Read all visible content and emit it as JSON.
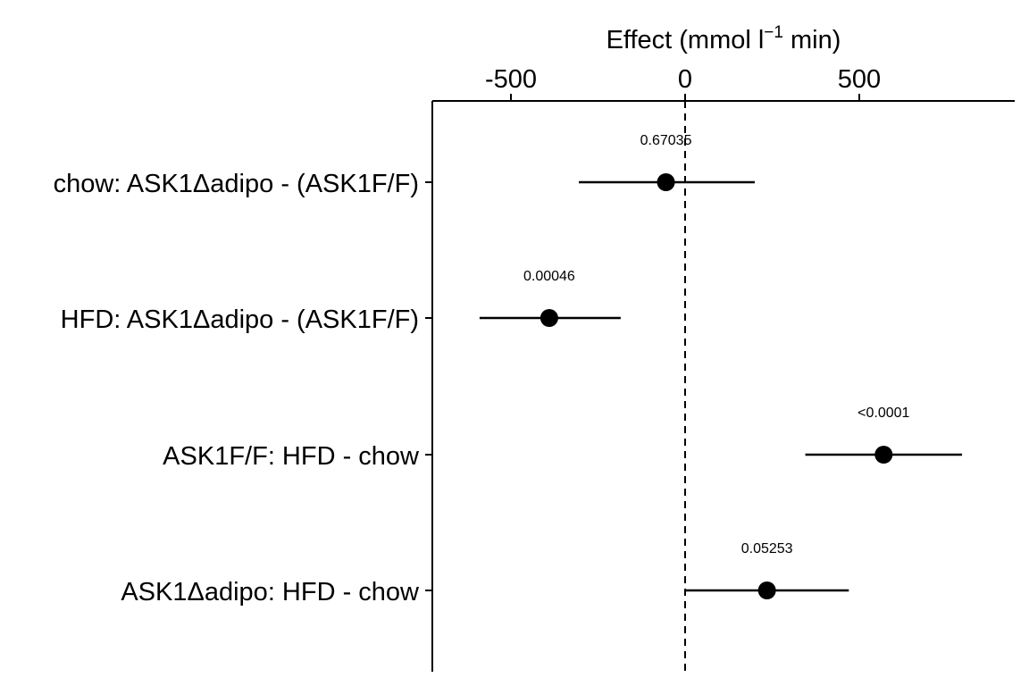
{
  "chart_data": {
    "type": "scatter",
    "subtype": "forest-plot",
    "xlabel": {
      "prefix": "Effect (mmol l",
      "superscript": "−1",
      "suffix": " min)"
    },
    "x_axis_position": "top",
    "xlim": [
      -750,
      950
    ],
    "xticks": [
      -500,
      0,
      500
    ],
    "xtick_labels": [
      "-500",
      "0",
      "500"
    ],
    "reference_line": {
      "x": 0,
      "style": "dashed"
    },
    "grid": false,
    "legend": "none",
    "rows": [
      {
        "label": "chow: ASK1Δadipo - (ASK1F/F)",
        "estimate": -55,
        "ci_low": -305,
        "ci_high": 200,
        "p_value": "0.67035"
      },
      {
        "label": "HFD: ASK1Δadipo - (ASK1F/F)",
        "estimate": -390,
        "ci_low": -590,
        "ci_high": -185,
        "p_value": "0.00046"
      },
      {
        "label": "ASK1F/F: HFD - chow",
        "estimate": 570,
        "ci_low": 345,
        "ci_high": 795,
        "p_value": "<0.0001"
      },
      {
        "label": "ASK1Δadipo: HFD - chow",
        "estimate": 235,
        "ci_low": 0,
        "ci_high": 470,
        "p_value": "0.05253"
      }
    ],
    "colors": {
      "points": "#000000",
      "lines": "#000000"
    }
  }
}
